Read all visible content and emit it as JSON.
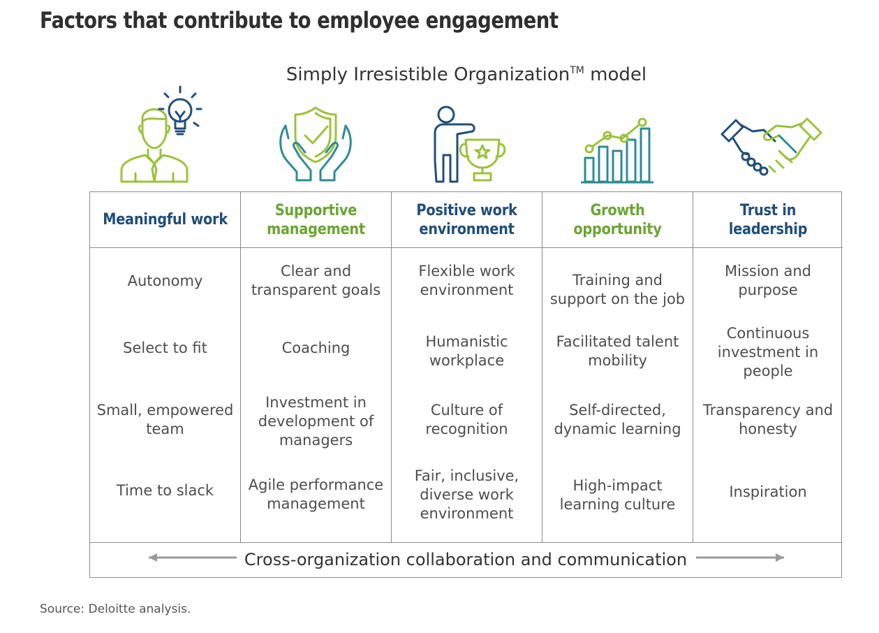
{
  "title": "Factors that contribute to employee engagement",
  "subtitle": {
    "text": "Simply Irresistible Organization",
    "superscript": "TM",
    "suffix": " model"
  },
  "colors": {
    "blue": "#1f4e79",
    "green": "#6aa532",
    "teal": "#2e8b94",
    "lime": "#9bc23c",
    "border": "#8a8a8a"
  },
  "columns": [
    {
      "header": "Meaningful work",
      "header_color": "blue",
      "icon": "person-lightbulb-icon",
      "items": [
        "Autonomy",
        "Select to fit",
        "Small, empowered team",
        "Time to slack"
      ]
    },
    {
      "header": "Supportive management",
      "header_color": "green",
      "icon": "hands-shield-icon",
      "items": [
        "Clear and transparent goals",
        "Coaching",
        "Investment in development of managers",
        "Agile performance management"
      ]
    },
    {
      "header": "Positive work environment",
      "header_color": "blue",
      "icon": "person-trophy-icon",
      "items": [
        "Flexible work environment",
        "Humanistic workplace",
        "Culture of recognition",
        "Fair, inclusive, diverse work environment"
      ]
    },
    {
      "header": "Growth opportunity",
      "header_color": "green",
      "icon": "growth-chart-icon",
      "items": [
        "Training and support on the job",
        "Facilitated talent mobility",
        "Self-directed, dynamic learning",
        "High-impact learning culture"
      ]
    },
    {
      "header": "Trust in leadership",
      "header_color": "blue",
      "icon": "handshake-icon",
      "items": [
        "Mission and purpose",
        "Continuous investment in people",
        "Transparency and honesty",
        "Inspiration"
      ]
    }
  ],
  "footer": "Cross-organization collaboration and communication",
  "source": "Source: Deloitte analysis."
}
